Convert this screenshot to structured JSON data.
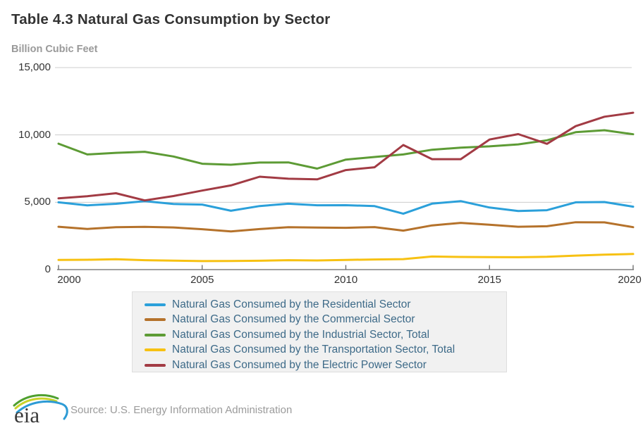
{
  "header": {
    "title": "Table 4.3 Natural Gas Consumption by Sector",
    "units_label": "Billion Cubic Feet"
  },
  "chart_data": {
    "type": "line",
    "title": "Table 4.3 Natural Gas Consumption by Sector",
    "ylabel": "Billion Cubic Feet",
    "xlabel": "",
    "grid": true,
    "legend_position": "bottom",
    "ylim": [
      0,
      15000
    ],
    "y_ticks": [
      0,
      5000,
      10000,
      15000
    ],
    "y_tick_labels": [
      "0",
      "5,000",
      "10,000",
      "15,000"
    ],
    "x_ticks": [
      2000,
      2005,
      2010,
      2015,
      2020
    ],
    "x_tick_labels": [
      "2000",
      "2005",
      "2010",
      "2015",
      "2020"
    ],
    "x": [
      2000,
      2001,
      2002,
      2003,
      2004,
      2005,
      2006,
      2007,
      2008,
      2009,
      2010,
      2011,
      2012,
      2013,
      2014,
      2015,
      2016,
      2017,
      2018,
      2019,
      2020
    ],
    "series": [
      {
        "name": "Natural Gas Consumed by the Residential Sector",
        "slug": "residential",
        "color": "#2ba0da",
        "values": [
          4996,
          4771,
          4889,
          5079,
          4869,
          4827,
          4368,
          4722,
          4892,
          4779,
          4782,
          4714,
          4149,
          4897,
          5086,
          4612,
          4346,
          4412,
          4997,
          5015,
          4673
        ]
      },
      {
        "name": "Natural Gas Consumed by the Commercial Sector",
        "slug": "commercial",
        "color": "#b5722b",
        "values": [
          3182,
          3023,
          3144,
          3179,
          3129,
          2999,
          2832,
          3013,
          3153,
          3119,
          3103,
          3155,
          2895,
          3284,
          3472,
          3331,
          3184,
          3222,
          3519,
          3509,
          3153
        ]
      },
      {
        "name": "Natural Gas Consumed by the Industrial Sector, Total",
        "slug": "industrial",
        "color": "#5d9b35",
        "values": [
          9350,
          8550,
          8670,
          8750,
          8400,
          7860,
          7790,
          7950,
          7960,
          7500,
          8170,
          8360,
          8550,
          8900,
          9050,
          9150,
          9300,
          9600,
          10200,
          10350,
          10050
        ]
      },
      {
        "name": "Natural Gas Consumed by the Transportation Sector, Total",
        "slug": "transportation",
        "color": "#f7c112",
        "values": [
          720,
          730,
          770,
          700,
          670,
          630,
          640,
          660,
          700,
          680,
          720,
          750,
          780,
          970,
          940,
          930,
          920,
          950,
          1040,
          1110,
          1160
        ]
      },
      {
        "name": "Natural Gas Consumed by the Electric Power Sector",
        "slug": "electric-power",
        "color": "#a23b44",
        "values": [
          5290,
          5450,
          5670,
          5140,
          5460,
          5870,
          6250,
          6900,
          6750,
          6700,
          7390,
          7600,
          9250,
          8200,
          8200,
          9660,
          10060,
          9340,
          10650,
          11350,
          11650
        ]
      }
    ],
    "style": {
      "grid_color": "#cccccc",
      "axis_color": "#666666"
    }
  },
  "footer": {
    "logo_text": "eia",
    "source": "Source: U.S. Energy Information Administration"
  }
}
